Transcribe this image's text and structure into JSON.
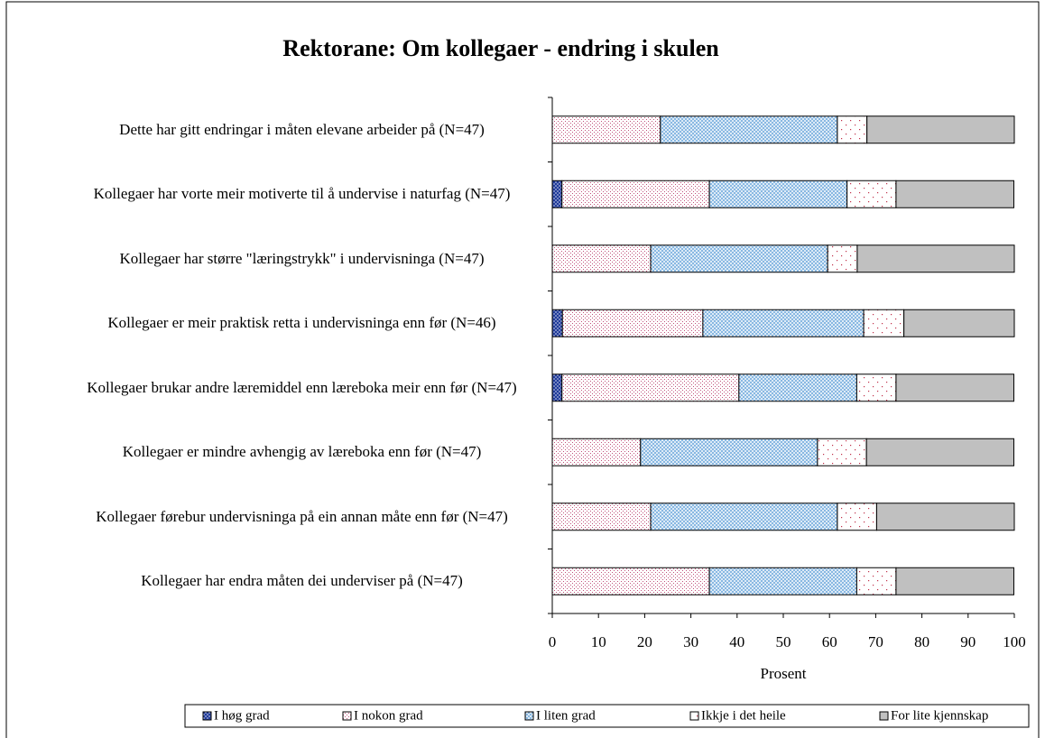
{
  "chart_data": {
    "type": "stacked-barh",
    "title": "Rektorane: Om kollegaer - endring i skulen",
    "xlabel": "Prosent",
    "categories": [
      "Dette har gitt endringar i måten elevane arbeider på (N=47)",
      "Kollegaer har vorte meir motiverte til å undervise i naturfag (N=47)",
      "Kollegaer har større \"læringstrykk\" i undervisninga (N=47)",
      "Kollegaer er meir praktisk retta i undervisninga enn før (N=46)",
      "Kollegaer brukar andre læremiddel enn læreboka meir enn før (N=47)",
      "Kollegaer er mindre avhengig av læreboka enn før (N=47)",
      "Kollegaer førebur undervisninga på ein annan måte enn før  (N=47)",
      "Kollegaer har endra måten dei underviser på (N=47)"
    ],
    "series": [
      {
        "name": "I høg grad",
        "color": "#1f3a9a",
        "pattern": "crosshatch",
        "values": [
          0,
          2.1,
          0,
          2.2,
          2.1,
          0,
          0,
          0
        ]
      },
      {
        "name": "I nokon grad",
        "color": "#c0507a",
        "pattern": "dots",
        "values": [
          23.4,
          31.9,
          21.3,
          30.4,
          38.3,
          19.1,
          21.3,
          34.0
        ]
      },
      {
        "name": "I liten grad",
        "color": "#7fb2e0",
        "pattern": "crosshatch",
        "values": [
          38.3,
          29.8,
          38.3,
          34.8,
          25.5,
          38.3,
          40.4,
          31.9
        ]
      },
      {
        "name": "Ikkje i det heile",
        "color": "#c0304a",
        "pattern": "sparse-dots",
        "values": [
          6.4,
          10.6,
          6.4,
          8.7,
          8.5,
          10.6,
          8.5,
          8.5
        ]
      },
      {
        "name": "For lite kjennskap",
        "color": "#c0c0c0",
        "pattern": "solid",
        "values": [
          31.9,
          25.5,
          34.0,
          23.9,
          25.5,
          31.9,
          29.8,
          25.5
        ]
      }
    ],
    "xlim": [
      0,
      100
    ],
    "xticks": [
      0,
      10,
      20,
      30,
      40,
      50,
      60,
      70,
      80,
      90,
      100
    ],
    "legend": "bottom"
  }
}
